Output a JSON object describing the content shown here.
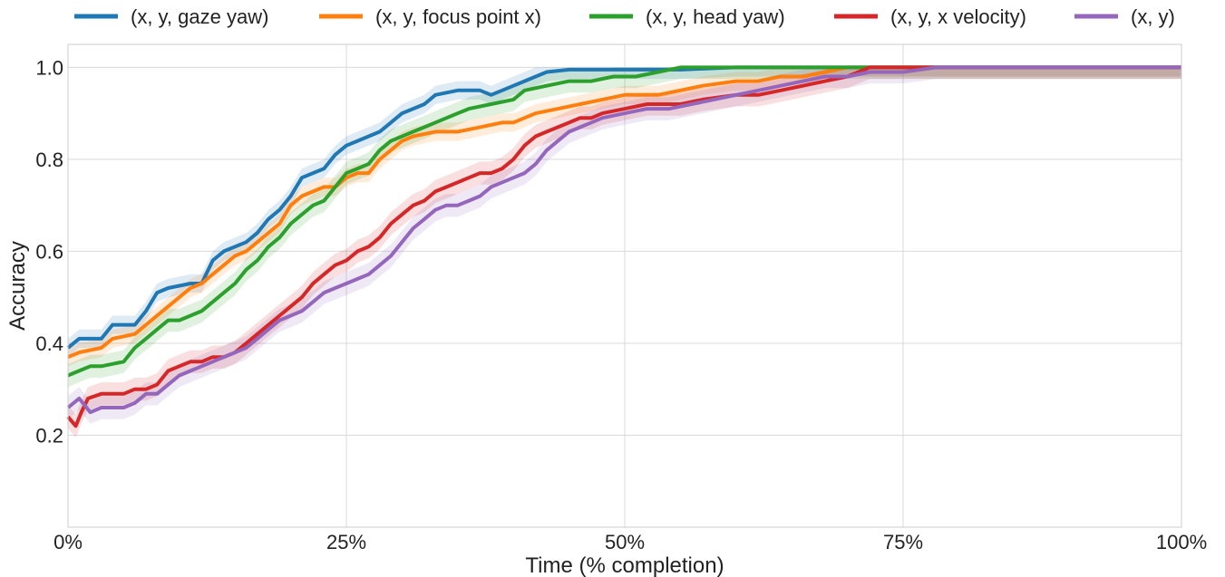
{
  "chart_data": {
    "type": "line",
    "xlabel": "Time (% completion)",
    "ylabel": "Accuracy",
    "xlim": [
      0,
      100
    ],
    "ylim": [
      0.0,
      1.05
    ],
    "x_ticks": [
      0,
      25,
      50,
      75,
      100
    ],
    "x_tick_labels": [
      "0%",
      "25%",
      "50%",
      "75%",
      "100%"
    ],
    "y_ticks": [
      0.2,
      0.4,
      0.6,
      0.8,
      1.0
    ],
    "y_tick_labels": [
      "0.2",
      "0.4",
      "0.6",
      "0.8",
      "1.0"
    ],
    "grid": true,
    "legend_position": "top",
    "series": [
      {
        "name": "(x, y, gaze yaw)",
        "color": "#1f77b4",
        "band": 0.02,
        "points": [
          [
            0,
            0.39
          ],
          [
            1,
            0.41
          ],
          [
            3,
            0.41
          ],
          [
            4,
            0.44
          ],
          [
            6,
            0.44
          ],
          [
            7,
            0.47
          ],
          [
            8,
            0.51
          ],
          [
            9,
            0.52
          ],
          [
            11,
            0.53
          ],
          [
            12,
            0.53
          ],
          [
            13,
            0.58
          ],
          [
            14,
            0.6
          ],
          [
            16,
            0.62
          ],
          [
            17,
            0.64
          ],
          [
            18,
            0.67
          ],
          [
            19,
            0.69
          ],
          [
            20,
            0.72
          ],
          [
            21,
            0.76
          ],
          [
            22,
            0.77
          ],
          [
            23,
            0.78
          ],
          [
            24,
            0.81
          ],
          [
            25,
            0.83
          ],
          [
            26,
            0.84
          ],
          [
            27,
            0.85
          ],
          [
            28,
            0.86
          ],
          [
            29,
            0.88
          ],
          [
            30,
            0.9
          ],
          [
            32,
            0.92
          ],
          [
            33,
            0.94
          ],
          [
            35,
            0.95
          ],
          [
            37,
            0.95
          ],
          [
            38,
            0.94
          ],
          [
            40,
            0.96
          ],
          [
            41,
            0.97
          ],
          [
            42,
            0.98
          ],
          [
            43,
            0.99
          ],
          [
            45,
            0.995
          ],
          [
            50,
            0.995
          ],
          [
            55,
            0.995
          ],
          [
            60,
            1.0
          ],
          [
            100,
            1.0
          ]
        ]
      },
      {
        "name": "(x, y, focus point x)",
        "color": "#ff7f0e",
        "band": 0.02,
        "points": [
          [
            0,
            0.37
          ],
          [
            1,
            0.38
          ],
          [
            3,
            0.39
          ],
          [
            4,
            0.41
          ],
          [
            6,
            0.42
          ],
          [
            7,
            0.44
          ],
          [
            8,
            0.46
          ],
          [
            9,
            0.48
          ],
          [
            11,
            0.52
          ],
          [
            12,
            0.53
          ],
          [
            13,
            0.55
          ],
          [
            14,
            0.57
          ],
          [
            15,
            0.59
          ],
          [
            16,
            0.6
          ],
          [
            17,
            0.62
          ],
          [
            18,
            0.64
          ],
          [
            19,
            0.66
          ],
          [
            20,
            0.7
          ],
          [
            21,
            0.72
          ],
          [
            22,
            0.73
          ],
          [
            23,
            0.74
          ],
          [
            24,
            0.74
          ],
          [
            25,
            0.76
          ],
          [
            26,
            0.77
          ],
          [
            27,
            0.77
          ],
          [
            28,
            0.8
          ],
          [
            29,
            0.82
          ],
          [
            30,
            0.84
          ],
          [
            31,
            0.85
          ],
          [
            33,
            0.86
          ],
          [
            35,
            0.86
          ],
          [
            37,
            0.87
          ],
          [
            39,
            0.88
          ],
          [
            40,
            0.88
          ],
          [
            41,
            0.89
          ],
          [
            42,
            0.9
          ],
          [
            44,
            0.91
          ],
          [
            46,
            0.92
          ],
          [
            48,
            0.93
          ],
          [
            50,
            0.94
          ],
          [
            53,
            0.94
          ],
          [
            55,
            0.95
          ],
          [
            57,
            0.96
          ],
          [
            60,
            0.97
          ],
          [
            62,
            0.97
          ],
          [
            64,
            0.98
          ],
          [
            66,
            0.98
          ],
          [
            68,
            0.99
          ],
          [
            70,
            1.0
          ],
          [
            100,
            1.0
          ]
        ]
      },
      {
        "name": "(x, y, head yaw)",
        "color": "#2ca02c",
        "band": 0.025,
        "points": [
          [
            0,
            0.33
          ],
          [
            1,
            0.34
          ],
          [
            2,
            0.35
          ],
          [
            3,
            0.35
          ],
          [
            5,
            0.36
          ],
          [
            6,
            0.39
          ],
          [
            7,
            0.41
          ],
          [
            8,
            0.43
          ],
          [
            9,
            0.45
          ],
          [
            10,
            0.45
          ],
          [
            11,
            0.46
          ],
          [
            12,
            0.47
          ],
          [
            13,
            0.49
          ],
          [
            14,
            0.51
          ],
          [
            15,
            0.53
          ],
          [
            16,
            0.56
          ],
          [
            17,
            0.58
          ],
          [
            18,
            0.61
          ],
          [
            19,
            0.63
          ],
          [
            20,
            0.66
          ],
          [
            21,
            0.68
          ],
          [
            22,
            0.7
          ],
          [
            23,
            0.71
          ],
          [
            24,
            0.74
          ],
          [
            25,
            0.77
          ],
          [
            26,
            0.78
          ],
          [
            27,
            0.79
          ],
          [
            28,
            0.82
          ],
          [
            29,
            0.84
          ],
          [
            30,
            0.85
          ],
          [
            31,
            0.86
          ],
          [
            32,
            0.87
          ],
          [
            33,
            0.88
          ],
          [
            35,
            0.9
          ],
          [
            36,
            0.91
          ],
          [
            38,
            0.92
          ],
          [
            40,
            0.93
          ],
          [
            41,
            0.95
          ],
          [
            43,
            0.96
          ],
          [
            45,
            0.97
          ],
          [
            47,
            0.97
          ],
          [
            49,
            0.98
          ],
          [
            51,
            0.98
          ],
          [
            53,
            0.99
          ],
          [
            55,
            1.0
          ],
          [
            100,
            1.0
          ]
        ]
      },
      {
        "name": "(x, y, x velocity)",
        "color": "#d62728",
        "band": 0.025,
        "points": [
          [
            0,
            0.24
          ],
          [
            0.7,
            0.22
          ],
          [
            1.2,
            0.25
          ],
          [
            1.8,
            0.28
          ],
          [
            3,
            0.29
          ],
          [
            5,
            0.29
          ],
          [
            6,
            0.3
          ],
          [
            7,
            0.3
          ],
          [
            8,
            0.31
          ],
          [
            9,
            0.34
          ],
          [
            10,
            0.35
          ],
          [
            11,
            0.36
          ],
          [
            12,
            0.36
          ],
          [
            13,
            0.37
          ],
          [
            14,
            0.37
          ],
          [
            15,
            0.38
          ],
          [
            16,
            0.4
          ],
          [
            17,
            0.42
          ],
          [
            18,
            0.44
          ],
          [
            19,
            0.46
          ],
          [
            20,
            0.48
          ],
          [
            21,
            0.5
          ],
          [
            22,
            0.53
          ],
          [
            23,
            0.55
          ],
          [
            24,
            0.57
          ],
          [
            25,
            0.58
          ],
          [
            26,
            0.6
          ],
          [
            27,
            0.61
          ],
          [
            28,
            0.63
          ],
          [
            29,
            0.66
          ],
          [
            30,
            0.68
          ],
          [
            31,
            0.7
          ],
          [
            32,
            0.71
          ],
          [
            33,
            0.73
          ],
          [
            34,
            0.74
          ],
          [
            35,
            0.75
          ],
          [
            36,
            0.76
          ],
          [
            37,
            0.77
          ],
          [
            38,
            0.77
          ],
          [
            39,
            0.78
          ],
          [
            40,
            0.8
          ],
          [
            41,
            0.83
          ],
          [
            42,
            0.85
          ],
          [
            43,
            0.86
          ],
          [
            44,
            0.87
          ],
          [
            45,
            0.88
          ],
          [
            46,
            0.89
          ],
          [
            47,
            0.89
          ],
          [
            48,
            0.9
          ],
          [
            50,
            0.91
          ],
          [
            52,
            0.92
          ],
          [
            55,
            0.92
          ],
          [
            57,
            0.93
          ],
          [
            60,
            0.94
          ],
          [
            62,
            0.94
          ],
          [
            64,
            0.95
          ],
          [
            66,
            0.96
          ],
          [
            68,
            0.97
          ],
          [
            70,
            0.98
          ],
          [
            72,
            1.0
          ],
          [
            100,
            1.0
          ]
        ]
      },
      {
        "name": "(x, y)",
        "color": "#9467bd",
        "band": 0.025,
        "points": [
          [
            0,
            0.26
          ],
          [
            1,
            0.28
          ],
          [
            2,
            0.25
          ],
          [
            3,
            0.26
          ],
          [
            4,
            0.26
          ],
          [
            5,
            0.26
          ],
          [
            6,
            0.27
          ],
          [
            7,
            0.29
          ],
          [
            8,
            0.29
          ],
          [
            9,
            0.31
          ],
          [
            10,
            0.33
          ],
          [
            11,
            0.34
          ],
          [
            12,
            0.35
          ],
          [
            13,
            0.36
          ],
          [
            14,
            0.37
          ],
          [
            15,
            0.38
          ],
          [
            16,
            0.39
          ],
          [
            17,
            0.41
          ],
          [
            18,
            0.43
          ],
          [
            19,
            0.45
          ],
          [
            20,
            0.46
          ],
          [
            21,
            0.47
          ],
          [
            22,
            0.49
          ],
          [
            23,
            0.51
          ],
          [
            24,
            0.52
          ],
          [
            25,
            0.53
          ],
          [
            26,
            0.54
          ],
          [
            27,
            0.55
          ],
          [
            28,
            0.57
          ],
          [
            29,
            0.59
          ],
          [
            30,
            0.62
          ],
          [
            31,
            0.65
          ],
          [
            32,
            0.67
          ],
          [
            33,
            0.69
          ],
          [
            34,
            0.7
          ],
          [
            35,
            0.7
          ],
          [
            36,
            0.71
          ],
          [
            37,
            0.72
          ],
          [
            38,
            0.74
          ],
          [
            39,
            0.75
          ],
          [
            40,
            0.76
          ],
          [
            41,
            0.77
          ],
          [
            42,
            0.79
          ],
          [
            43,
            0.82
          ],
          [
            44,
            0.84
          ],
          [
            45,
            0.86
          ],
          [
            46,
            0.87
          ],
          [
            47,
            0.88
          ],
          [
            48,
            0.89
          ],
          [
            50,
            0.9
          ],
          [
            52,
            0.91
          ],
          [
            54,
            0.91
          ],
          [
            56,
            0.92
          ],
          [
            58,
            0.93
          ],
          [
            60,
            0.94
          ],
          [
            62,
            0.95
          ],
          [
            64,
            0.96
          ],
          [
            66,
            0.97
          ],
          [
            68,
            0.98
          ],
          [
            70,
            0.98
          ],
          [
            72,
            0.99
          ],
          [
            75,
            0.99
          ],
          [
            78,
            1.0
          ],
          [
            100,
            1.0
          ]
        ]
      }
    ]
  }
}
